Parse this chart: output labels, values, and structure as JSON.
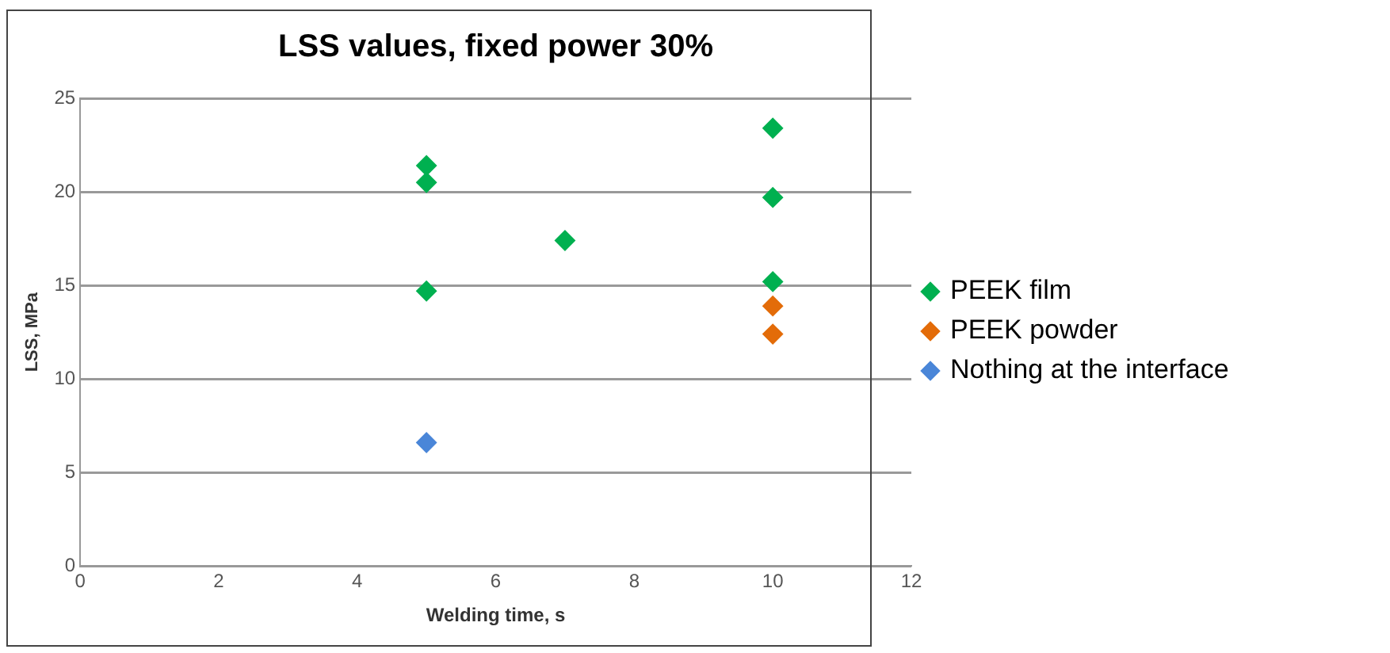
{
  "chart_data": {
    "type": "scatter",
    "title": "LSS values, fixed power 30%",
    "xlabel": "Welding time, s",
    "ylabel": "LSS, MPa",
    "series": [
      {
        "name": "PEEK film",
        "color": "#00b050",
        "x": [
          5,
          5,
          5,
          7,
          10,
          10,
          10
        ],
        "values": [
          21.4,
          20.5,
          14.7,
          17.4,
          23.4,
          19.7,
          15.2
        ]
      },
      {
        "name": "PEEK powder",
        "color": "#e36c09",
        "x": [
          10,
          10
        ],
        "values": [
          13.9,
          12.4
        ]
      },
      {
        "name": "Nothing at the interface",
        "color": "#4a86d8",
        "x": [
          5
        ],
        "values": [
          6.6
        ]
      }
    ],
    "xlim": [
      0,
      12
    ],
    "xticks": [
      0,
      2,
      4,
      6,
      8,
      10,
      12
    ],
    "ylim": [
      0,
      25
    ],
    "yticks": [
      0,
      5,
      10,
      15,
      20,
      25
    ],
    "grid": "y",
    "legend": "right",
    "marker": "diamond"
  }
}
